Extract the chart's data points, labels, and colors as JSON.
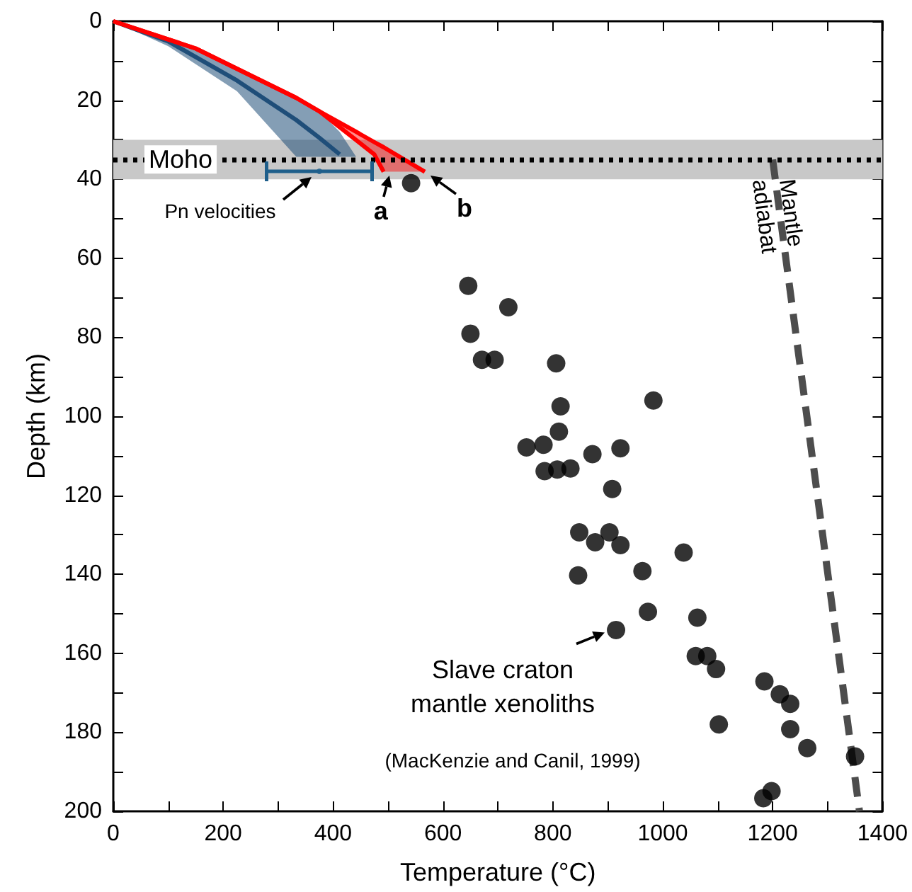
{
  "chart_data": {
    "type": "scatter",
    "xlabel": "Temperature (°C)",
    "ylabel": "Depth (km)",
    "xlim": [
      0,
      1400
    ],
    "xticks": [
      0,
      {
        "value": 100,
        "label": null
      },
      200,
      {
        "value": 300,
        "label": null
      },
      400,
      {
        "value": 500,
        "label": null
      },
      600,
      {
        "value": 700,
        "label": null
      },
      800,
      {
        "value": 900,
        "label": null
      },
      1000,
      {
        "value": 1100,
        "label": null
      },
      1200,
      {
        "value": 1300,
        "label": null
      },
      1400
    ],
    "ylim": [
      200,
      0
    ],
    "yticks": [
      0,
      {
        "value": 10,
        "label": null
      },
      20,
      {
        "value": 30,
        "label": null
      },
      40,
      {
        "value": 50,
        "label": null
      },
      60,
      {
        "value": 70,
        "label": null
      },
      80,
      {
        "value": 90,
        "label": null
      },
      100,
      {
        "value": 110,
        "label": null
      },
      120,
      {
        "value": 130,
        "label": null
      },
      140,
      {
        "value": 150,
        "label": null
      },
      160,
      {
        "value": 170,
        "label": null
      },
      180,
      {
        "value": 190,
        "label": null
      },
      200
    ],
    "grid": false,
    "bands": [
      {
        "axis": "y",
        "from": 30,
        "to": 40,
        "color": "#c8c8c8"
      }
    ],
    "ref_lines": [
      {
        "axis": "y",
        "value": 35,
        "label": "Moho",
        "color": "#000000",
        "line_style": "dotted"
      }
    ],
    "series": [
      {
        "type": "line",
        "color": "#1f4e79",
        "x": [
          0,
          100,
          225,
          333,
          375,
          412,
          442
        ],
        "values": [
          0,
          5.1,
          15,
          25,
          29.5,
          33.7,
          null
        ],
        "lower": [
          0,
          4.3,
          12,
          19.4,
          22.8,
          28,
          34.3
        ],
        "upper": [
          0,
          6.3,
          17.7,
          34.3,
          34.3,
          34.3,
          34.3
        ]
      },
      {
        "type": "line",
        "color": "#ff0000",
        "x": [
          0,
          150,
          333,
          375,
          442,
          475,
          492,
          567
        ],
        "values": [
          0,
          6.9,
          19.4,
          22.8,
          28,
          30.6,
          31.9,
          38.1
        ],
        "lower": [
          0,
          6.9,
          19.4,
          22.8,
          28,
          30.6,
          31.9,
          38.1
        ],
        "upper": [
          0,
          6.9,
          19.4,
          22.8,
          30.1,
          33.7,
          38.1,
          38.1
        ]
      },
      {
        "type": "line",
        "color": "#ff0000",
        "x": [
          0,
          150,
          333,
          375,
          442,
          475,
          492
        ],
        "values": [
          0,
          6.9,
          19.4,
          22.8,
          30.1,
          33.7,
          38.1
        ]
      },
      {
        "type": "scatter",
        "color": "#1f5f8b",
        "x": [
          375
        ],
        "values": [
          38
        ],
        "xerrors": [
          [
            279,
            471
          ]
        ]
      },
      {
        "type": "line",
        "color": "#4d4d4d",
        "line_style": "dashed",
        "x": [
          1200,
          1358
        ],
        "values": [
          35,
          200
        ]
      },
      {
        "color": "#000000",
        "marker": "circle",
        "x": [
          542,
          646,
          719,
          650,
          671,
          694,
          806,
          814,
          983,
          811,
          752,
          783,
          872,
          923,
          785,
          808,
          832,
          908,
          848,
          877,
          903,
          923,
          1038,
          846,
          963,
          973,
          1063,
          915,
          1060,
          1081,
          1097,
          1185,
          1213,
          1232,
          1102,
          1232,
          1263,
          1350,
          1183,
          1198
        ],
        "values": [
          41,
          67,
          72.4,
          79.1,
          85.7,
          85.7,
          86.6,
          97.5,
          96,
          103.9,
          107.9,
          107.2,
          109.6,
          108.1,
          113.9,
          113.5,
          113.2,
          118.4,
          129.4,
          131.9,
          129.4,
          132.6,
          134.5,
          140.3,
          139.2,
          149.5,
          151,
          154.1,
          160.7,
          160.7,
          164,
          167.1,
          170.4,
          172.8,
          178,
          179.2,
          184,
          186.1,
          196.7,
          194.9
        ]
      }
    ],
    "annotations": [
      {
        "text": "Pn velocities",
        "x": 375,
        "y": 38
      },
      {
        "text": "a",
        "x": 492,
        "y": 38
      },
      {
        "text": "b",
        "x": 567,
        "y": 38
      },
      {
        "text": "Mantle\nadiabat",
        "x": 1213,
        "y": 49
      },
      {
        "text": "Slave craton\nmantle xenoliths",
        "x": 915,
        "y": 154.1
      },
      "(MacKenzie and Canil, 1999)"
    ]
  }
}
